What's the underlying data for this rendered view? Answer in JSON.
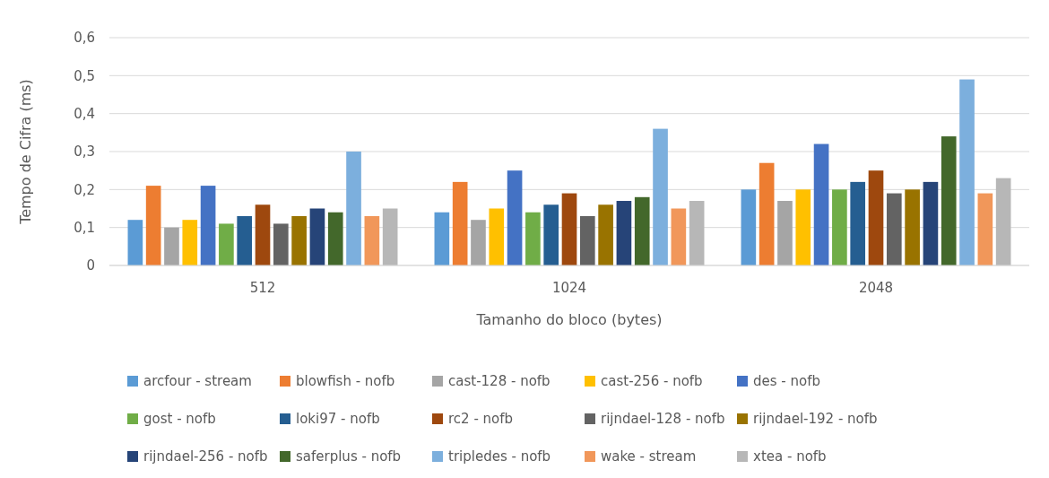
{
  "chart_data": {
    "type": "bar",
    "xlabel": "Tamanho do bloco (bytes)",
    "ylabel": "Tempo de Cifra (ms)",
    "categories": [
      "512",
      "1024",
      "2048"
    ],
    "ylim": [
      0,
      0.6
    ],
    "yticks": [
      {
        "value": 0,
        "label": "0"
      },
      {
        "value": 0.1,
        "label": "0,1"
      },
      {
        "value": 0.2,
        "label": "0,2"
      },
      {
        "value": 0.3,
        "label": "0,3"
      },
      {
        "value": 0.4,
        "label": "0,4"
      },
      {
        "value": 0.5,
        "label": "0,5"
      },
      {
        "value": 0.6,
        "label": "0,6"
      }
    ],
    "grid": "y",
    "legend": "bottom",
    "series": [
      {
        "name": "arcfour - stream",
        "color": "#5b9bd5",
        "values": [
          0.12,
          0.14,
          0.2
        ]
      },
      {
        "name": "blowfish - nofb",
        "color": "#ed7d31",
        "values": [
          0.21,
          0.22,
          0.27
        ]
      },
      {
        "name": "cast-128 - nofb",
        "color": "#a5a5a5",
        "values": [
          0.1,
          0.12,
          0.17
        ]
      },
      {
        "name": "cast-256 - nofb",
        "color": "#ffc000",
        "values": [
          0.12,
          0.15,
          0.2
        ]
      },
      {
        "name": "des - nofb",
        "color": "#4472c4",
        "values": [
          0.21,
          0.25,
          0.32
        ]
      },
      {
        "name": "gost - nofb",
        "color": "#70ad47",
        "values": [
          0.11,
          0.14,
          0.2
        ]
      },
      {
        "name": "loki97 - nofb",
        "color": "#255e91",
        "values": [
          0.13,
          0.16,
          0.22
        ]
      },
      {
        "name": "rc2 - nofb",
        "color": "#9e480e",
        "values": [
          0.16,
          0.19,
          0.25
        ]
      },
      {
        "name": "rijndael-128 - nofb",
        "color": "#636363",
        "values": [
          0.11,
          0.13,
          0.19
        ]
      },
      {
        "name": "rijndael-192 - nofb",
        "color": "#997300",
        "values": [
          0.13,
          0.16,
          0.2
        ]
      },
      {
        "name": "rijndael-256 - nofb",
        "color": "#264478",
        "values": [
          0.15,
          0.17,
          0.22
        ]
      },
      {
        "name": "saferplus - nofb",
        "color": "#43682b",
        "values": [
          0.14,
          0.18,
          0.34
        ]
      },
      {
        "name": "tripledes - nofb",
        "color": "#7cafdd",
        "values": [
          0.3,
          0.36,
          0.49
        ]
      },
      {
        "name": "wake - stream",
        "color": "#f1975a",
        "values": [
          0.13,
          0.15,
          0.19
        ]
      },
      {
        "name": "xtea - nofb",
        "color": "#b7b7b7",
        "values": [
          0.15,
          0.17,
          0.23
        ]
      }
    ]
  }
}
